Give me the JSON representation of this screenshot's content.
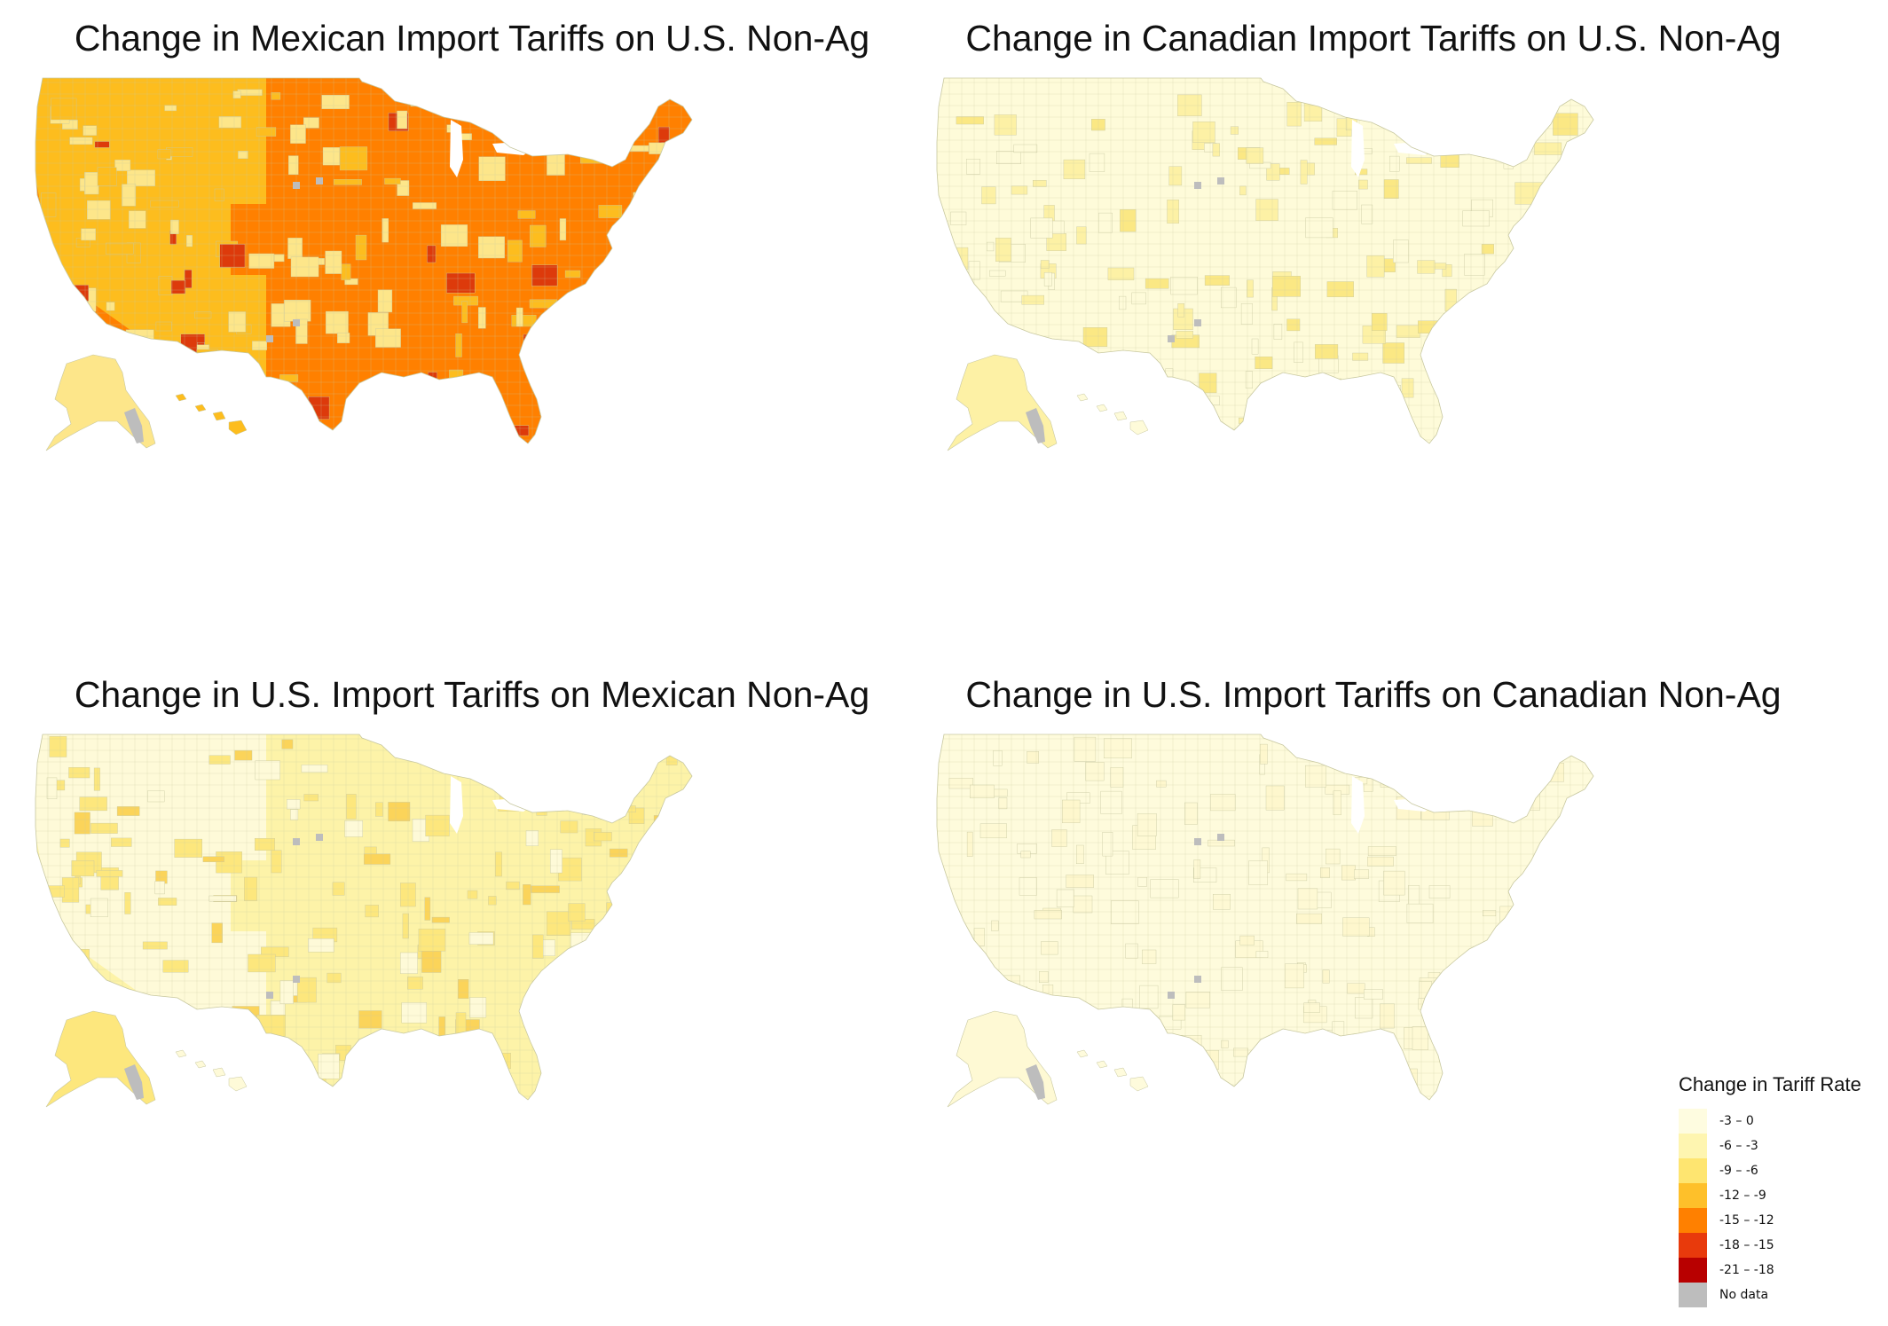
{
  "panels": [
    {
      "title": "Change in Mexican Import Tariffs on U.S. Non-Ag",
      "base_color": "#ff8000",
      "west_color": "#fdbd1e",
      "accent_color": "#fde68a",
      "dark_color": "#dd3a0b"
    },
    {
      "title": "Change in Canadian Import Tariffs on U.S. Non-Ag",
      "base_color": "#fefbd9",
      "west_color": "#fefbd9",
      "accent_color": "#fdf1a5",
      "dark_color": "#fbe884"
    },
    {
      "title": "Change in U.S. Import Tariffs on Mexican Non-Ag",
      "base_color": "#fdf3a8",
      "west_color": "#fefad8",
      "accent_color": "#fde77d",
      "dark_color": "#fbd45a"
    },
    {
      "title": "Change in U.S. Import Tariffs on Canadian Non-Ag",
      "base_color": "#fefbdc",
      "west_color": "#fefbdc",
      "accent_color": "#fef9d4",
      "dark_color": "#fef7cd"
    }
  ],
  "legend": {
    "title": "Change in Tariff Rate",
    "items": [
      {
        "label": "-3 – 0",
        "color": "#fefce0"
      },
      {
        "label": "-6 – -3",
        "color": "#fef5b0"
      },
      {
        "label": "-9 – -6",
        "color": "#fee570"
      },
      {
        "label": "-12 – -9",
        "color": "#fec02a"
      },
      {
        "label": "-15 – -12",
        "color": "#ff8000"
      },
      {
        "label": "-18 – -15",
        "color": "#e83a0c"
      },
      {
        "label": "-21 – -18",
        "color": "#b80000"
      },
      {
        "label": "No data",
        "color": "#bdbdbd"
      }
    ]
  },
  "colors": {
    "border": "#c8c8a0",
    "no_data": "#bdbdbd"
  }
}
